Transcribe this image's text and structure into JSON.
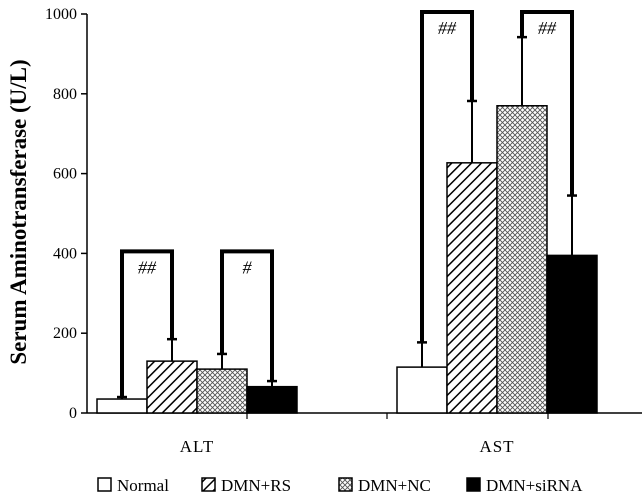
{
  "chart_data": {
    "type": "bar",
    "title": "",
    "xlabel": "",
    "ylabel": "Serum Aminotransferase (U/L)",
    "ylim": [
      0,
      1000
    ],
    "yticks": [
      0,
      200,
      400,
      600,
      800,
      1000
    ],
    "categories": [
      "ALT",
      "AST"
    ],
    "series": [
      {
        "name": "Normal",
        "values": [
          35,
          115
        ],
        "errors": [
          5,
          62
        ],
        "color": "#ffffff",
        "pattern": "none"
      },
      {
        "name": "DMN+RS",
        "values": [
          130,
          627
        ],
        "errors": [
          55,
          155
        ],
        "color": "#ffffff",
        "pattern": "diagonal"
      },
      {
        "name": "DMN+NC",
        "values": [
          110,
          770
        ],
        "errors": [
          38,
          172
        ],
        "color": "#ffffff",
        "pattern": "crosshatch"
      },
      {
        "name": "DMN+siRNA",
        "values": [
          66,
          395
        ],
        "errors": [
          14,
          150
        ],
        "color": "#000000",
        "pattern": "solid"
      }
    ],
    "annotations": [
      {
        "category": "ALT",
        "from_series": 0,
        "to_series": 1,
        "label": "##",
        "bracket_y": 405
      },
      {
        "category": "ALT",
        "from_series": 2,
        "to_series": 3,
        "label": "#",
        "bracket_y": 405
      },
      {
        "category": "AST",
        "from_series": 0,
        "to_series": 1,
        "label": "##",
        "bracket_y": 1005
      },
      {
        "category": "AST",
        "from_series": 2,
        "to_series": 3,
        "label": "##",
        "bracket_y": 1005
      }
    ],
    "grid": false,
    "legend": "bottom"
  }
}
